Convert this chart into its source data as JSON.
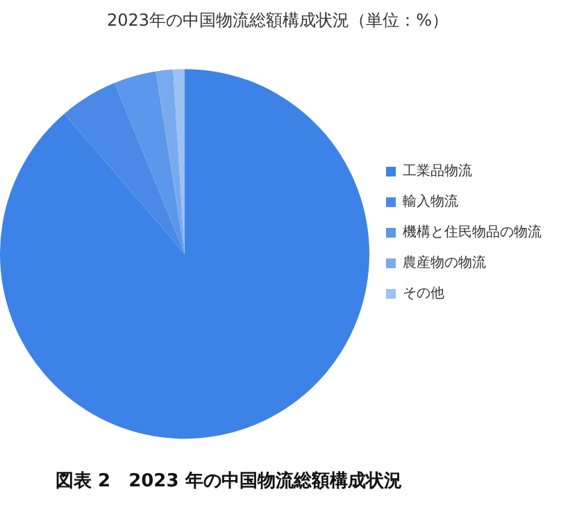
{
  "chart_data": {
    "type": "pie",
    "title": "2023年の中国物流総額構成状況（単位：%）",
    "categories": [
      "工業品物流",
      "輸入物流",
      "機構と住民物品の物流",
      "農産物の物流",
      "その他"
    ],
    "values": [
      88.7,
      5.1,
      3.7,
      1.5,
      1.0
    ],
    "colors": [
      "#3d82e6",
      "#4a8ae6",
      "#5b97ea",
      "#79aaee",
      "#9cc1f3"
    ],
    "legend": "right",
    "annotations": [
      "図表 2　2023 年の中国物流総額構成状況"
    ]
  }
}
